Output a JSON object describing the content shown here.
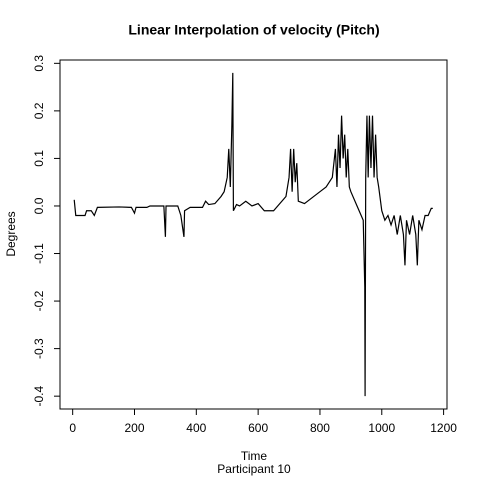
{
  "chart_data": {
    "type": "line",
    "title": "Linear Interpolation of velocity (Pitch)",
    "x_label": "Time",
    "subtitle": "Participant  10",
    "y_label": "Degrees",
    "color": "#000000",
    "xlim": [
      -41,
      1211
    ],
    "ylim": [
      -0.427,
      0.307
    ],
    "xticks": [
      0,
      200,
      400,
      600,
      800,
      1000,
      1200
    ],
    "yticks": [
      -0.4,
      -0.3,
      -0.2,
      -0.1,
      {
        "value": 0,
        "label": "0.0"
      },
      0.1,
      0.2,
      0.3
    ],
    "x": [
      5,
      10,
      40,
      45,
      60,
      70,
      80,
      150,
      190,
      200,
      205,
      240,
      250,
      295,
      300,
      302,
      340,
      350,
      360,
      362,
      380,
      420,
      430,
      440,
      460,
      480,
      490,
      500,
      505,
      510,
      515,
      518,
      520,
      530,
      540,
      560,
      580,
      600,
      620,
      650,
      670,
      690,
      700,
      705,
      710,
      715,
      720,
      725,
      730,
      750,
      780,
      800,
      820,
      840,
      850,
      855,
      860,
      865,
      870,
      875,
      880,
      885,
      890,
      895,
      900,
      920,
      940,
      945,
      946,
      948,
      952,
      956,
      960,
      965,
      970,
      975,
      980,
      985,
      990,
      1000,
      1010,
      1020,
      1030,
      1040,
      1050,
      1060,
      1070,
      1075,
      1080,
      1090,
      1100,
      1110,
      1115,
      1120,
      1130,
      1140,
      1150,
      1160,
      1165
    ],
    "values": [
      0.013,
      -0.02,
      -0.02,
      -0.01,
      -0.01,
      -0.02,
      -0.003,
      -0.002,
      -0.003,
      -0.015,
      -0.003,
      -0.003,
      0,
      0,
      -0.065,
      0,
      0,
      -0.02,
      -0.065,
      -0.01,
      -0.003,
      -0.003,
      0.01,
      0.003,
      0.005,
      0.02,
      0.03,
      0.06,
      0.12,
      0.04,
      0.17,
      0.28,
      -0.01,
      0.003,
      0,
      0.01,
      0,
      0.005,
      -0.01,
      -0.01,
      0.005,
      0.02,
      0.06,
      0.12,
      0.03,
      0.12,
      0.05,
      0.09,
      0.01,
      0.005,
      0.02,
      0.03,
      0.04,
      0.06,
      0.12,
      0.04,
      0.15,
      0.08,
      0.19,
      0.1,
      0.15,
      0.06,
      0.12,
      0.04,
      0.03,
      0,
      -0.03,
      -0.17,
      -0.4,
      0.06,
      0.19,
      0.06,
      0.19,
      0.08,
      0.19,
      0.06,
      0.15,
      0.06,
      0.04,
      -0.01,
      -0.03,
      -0.02,
      -0.04,
      -0.02,
      -0.06,
      -0.02,
      -0.06,
      -0.125,
      -0.03,
      -0.06,
      -0.02,
      -0.06,
      -0.125,
      -0.03,
      -0.05,
      -0.02,
      -0.02,
      -0.005,
      -0.005
    ]
  }
}
